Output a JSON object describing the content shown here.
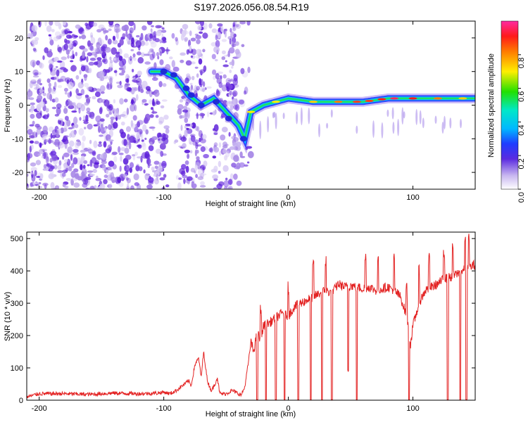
{
  "title": "S197.2026.056.08.54.R19",
  "chart_data": [
    {
      "type": "heatmap",
      "xlabel": "Height of straight line (km)",
      "ylabel": "Frequency (Hz)",
      "xlim": [
        -210,
        150
      ],
      "ylim": [
        -25,
        25
      ],
      "xticks": [
        -200,
        -100,
        0,
        100
      ],
      "yticks": [
        -20,
        -10,
        0,
        10,
        20
      ],
      "colorbar": {
        "label": "Normalized spectral amplitude",
        "range": [
          0,
          1
        ],
        "ticks": [
          "0.0",
          "0.2",
          "0.4",
          "0.6",
          "0.8"
        ]
      },
      "ridge": {
        "x": [
          -110,
          -100,
          -90,
          -80,
          -70,
          -60,
          -50,
          -40,
          -35,
          -30,
          -20,
          -10,
          0,
          20,
          40,
          60,
          80,
          100,
          120,
          150
        ],
        "hz": [
          10,
          10,
          8,
          3,
          0,
          2,
          -2,
          -6,
          -10,
          -2,
          0,
          1,
          2,
          1,
          1,
          1,
          2,
          2,
          2,
          2
        ]
      }
    },
    {
      "type": "line",
      "xlabel": "Height of straight line (km)",
      "ylabel": "SNR (10 * v/v)",
      "xlim": [
        -210,
        150
      ],
      "ylim": [
        0,
        520
      ],
      "xticks": [
        -200,
        -100,
        0,
        100
      ],
      "yticks": [
        0,
        100,
        200,
        300,
        400,
        500
      ],
      "series": [
        {
          "name": "SNR",
          "color": "#e32222",
          "x": [
            -210,
            -200,
            -180,
            -160,
            -140,
            -120,
            -105,
            -100,
            -95,
            -90,
            -85,
            -80,
            -78,
            -75,
            -72,
            -70,
            -68,
            -65,
            -62,
            -60,
            -57,
            -55,
            -50,
            -45,
            -40,
            -38,
            -35,
            -32,
            -30,
            -28,
            -25,
            -22,
            -20,
            -15,
            -10,
            -5,
            0,
            5,
            10,
            15,
            20,
            25,
            30,
            35,
            40,
            45,
            50,
            55,
            60,
            65,
            70,
            75,
            80,
            85,
            90,
            95,
            98,
            100,
            105,
            110,
            115,
            120,
            125,
            130,
            135,
            140,
            145,
            150
          ],
          "y": [
            10,
            20,
            20,
            18,
            22,
            20,
            22,
            25,
            20,
            30,
            45,
            60,
            45,
            110,
            130,
            70,
            150,
            60,
            30,
            40,
            70,
            20,
            20,
            30,
            20,
            15,
            40,
            120,
            180,
            150,
            210,
            180,
            230,
            240,
            255,
            270,
            260,
            290,
            300,
            310,
            320,
            330,
            340,
            330,
            360,
            350,
            355,
            350,
            345,
            350,
            340,
            345,
            350,
            340,
            320,
            260,
            170,
            230,
            300,
            340,
            350,
            360,
            375,
            380,
            390,
            400,
            410,
            420
          ],
          "spikes_down_at": [
            -25,
            -18,
            -10,
            -3,
            8,
            18,
            27,
            35,
            48,
            55,
            97,
            128,
            138,
            143
          ],
          "spikes_up_at": [
            -22,
            0,
            20,
            30,
            48,
            62,
            72,
            85,
            95,
            105,
            113,
            125,
            132,
            142,
            145
          ]
        }
      ]
    }
  ]
}
